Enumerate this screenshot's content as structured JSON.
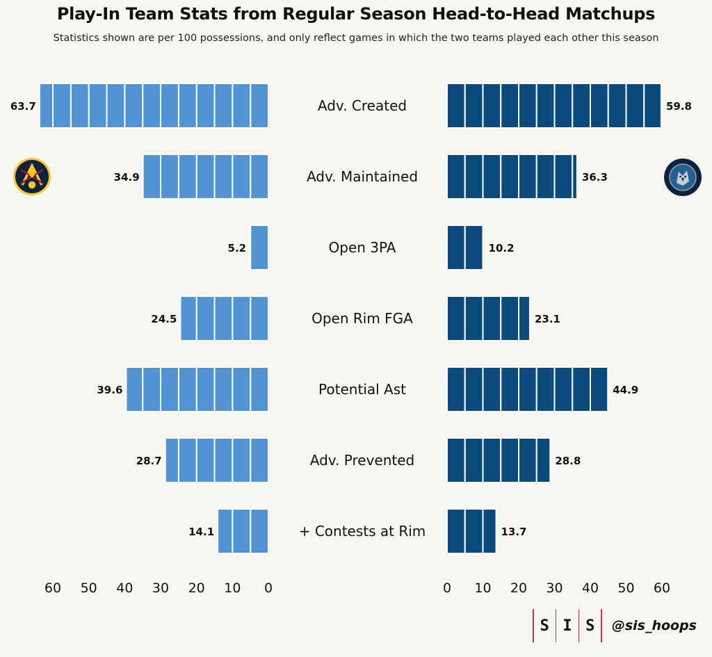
{
  "title": "Play-In Team Stats from Regular Season Head-to-Head Matchups",
  "subtitle": "Statistics shown are per 100 possessions, and only reflect games in which the two teams played each other this season",
  "footer": {
    "logo_letters": [
      "S",
      "I",
      "S"
    ],
    "handle": "@sis_hoops"
  },
  "colors": {
    "left_team": "#5193d3",
    "right_team": "#0c4a7d",
    "background": "#f8f6f1",
    "accent_red": "#d0313a"
  },
  "logos": {
    "left": "denver-nuggets-logo",
    "right": "minnesota-timberwolves-logo"
  },
  "chart_data": {
    "type": "bar",
    "orientation": "horizontal-diverging",
    "categories": [
      "Adv. Created",
      "Adv. Maintained",
      "Open 3PA",
      "Open Rim FGA",
      "Potential Ast",
      "Adv. Prevented",
      "+ Contests at Rim"
    ],
    "series": [
      {
        "values": [
          63.7,
          34.9,
          5.2,
          24.5,
          39.6,
          28.7,
          14.1
        ]
      },
      {
        "values": [
          59.8,
          36.3,
          10.2,
          23.1,
          44.9,
          28.8,
          13.7
        ]
      }
    ],
    "xlim": [
      0,
      60
    ],
    "ticks": [
      0,
      10,
      20,
      30,
      40,
      50,
      60
    ],
    "tick_labels": [
      "0",
      "10",
      "20",
      "30",
      "40",
      "50",
      "60"
    ],
    "segment_size": 5,
    "grid": false
  }
}
